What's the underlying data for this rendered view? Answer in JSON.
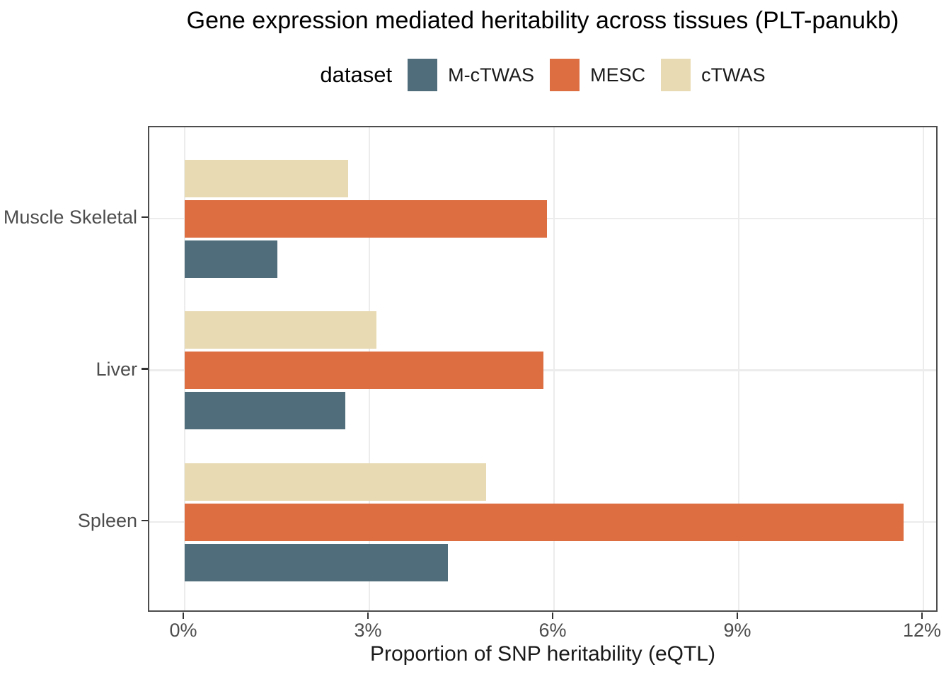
{
  "chart": {
    "title": "Gene expression mediated heritability across tissues (PLT-panukb)",
    "legend_title": "dataset",
    "xlabel": "Proportion of SNP heritability (eQTL)"
  },
  "chart_data": {
    "type": "bar",
    "orientation": "horizontal",
    "title": "Gene expression mediated heritability across tissues (PLT-panukb)",
    "xlabel": "Proportion of SNP heritability (eQTL)",
    "ylabel": "",
    "legend_title": "dataset",
    "legend_position": "top-center",
    "grid": "major-only",
    "categories": [
      "Muscle Skeletal",
      "Liver",
      "Spleen"
    ],
    "series": [
      {
        "name": "M-cTWAS",
        "color": "#4F6D7A",
        "values_pct": [
          1.5,
          2.61,
          4.28
        ]
      },
      {
        "name": "MESC",
        "color": "#DD6E42",
        "values_pct": [
          5.88,
          5.83,
          11.68
        ]
      },
      {
        "name": "cTWAS",
        "color": "#E8DAB2",
        "values_pct": [
          2.66,
          3.11,
          4.9
        ]
      }
    ],
    "x_ticks": [
      {
        "value": 0,
        "label": "0%"
      },
      {
        "value": 3,
        "label": "3%"
      },
      {
        "value": 6,
        "label": "6%"
      },
      {
        "value": 9,
        "label": "9%"
      },
      {
        "value": 12,
        "label": "12%"
      }
    ],
    "xlim": [
      0,
      12.3
    ],
    "bar_order_top_to_bottom": [
      "cTWAS",
      "MESC",
      "M-cTWAS"
    ]
  },
  "colors": {
    "panel_border": "#4d4d4d",
    "gridline": "#ececec",
    "tick": "#333333",
    "tick_label": "#4d4d4d",
    "title_text": "#000000"
  }
}
